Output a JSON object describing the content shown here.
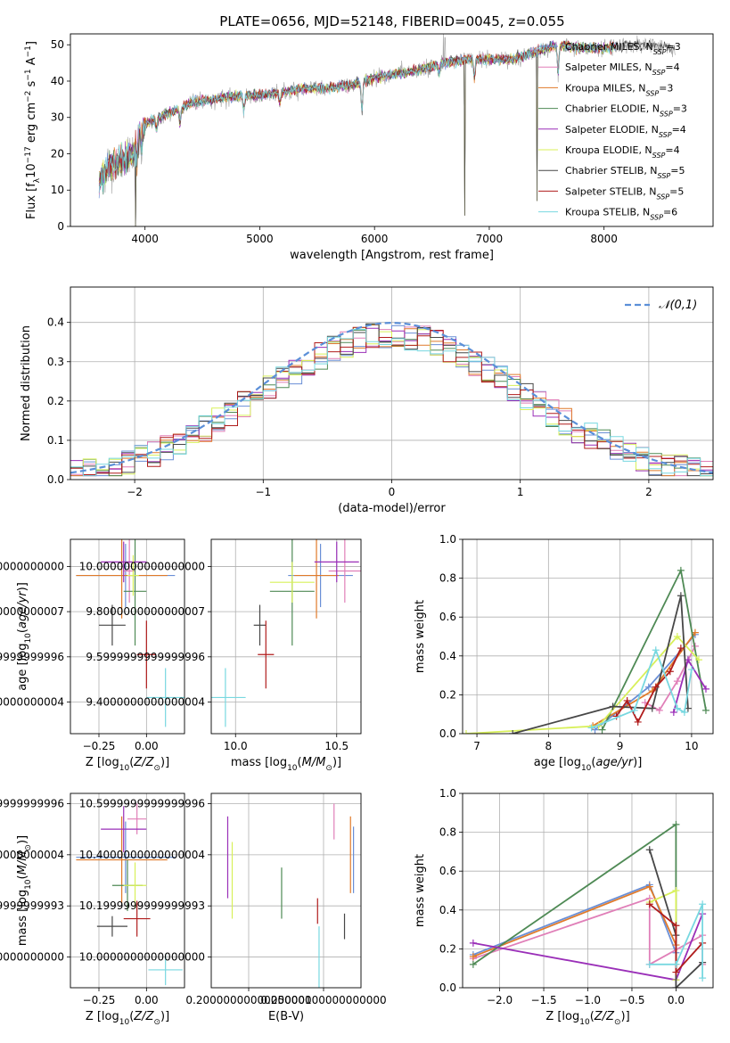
{
  "figure": {
    "title": "PLATE=0656, MJD=52148, FIBERID=0045, z=0.055"
  },
  "models": [
    {
      "name": "Chabrier MILES",
      "nssp": "3",
      "color": "#6a8fd6"
    },
    {
      "name": "Salpeter MILES",
      "nssp": "4",
      "color": "#e07fb8"
    },
    {
      "name": "Kroupa MILES",
      "nssp": "3",
      "color": "#e07a2a"
    },
    {
      "name": "Chabrier ELODIE",
      "nssp": "3",
      "color": "#4f8a55"
    },
    {
      "name": "Salpeter ELODIE",
      "nssp": "4",
      "color": "#9a2fb8"
    },
    {
      "name": "Kroupa ELODIE",
      "nssp": "4",
      "color": "#d8f05a"
    },
    {
      "name": "Chabrier STELIB",
      "nssp": "5",
      "color": "#474747"
    },
    {
      "name": "Salpeter STELIB",
      "nssp": "5",
      "color": "#b01c1c"
    },
    {
      "name": "Kroupa STELIB",
      "nssp": "6",
      "color": "#78d8e0"
    }
  ],
  "chart_data": [
    {
      "id": "spectrum",
      "type": "line",
      "xlabel": "wavelength [Angstrom, rest frame]",
      "ylabel": "Flux [f",
      "xlim": [
        3350,
        8950
      ],
      "ylim": [
        0,
        53
      ],
      "xticks": [
        4000,
        5000,
        6000,
        7000,
        8000
      ],
      "yticks": [
        0,
        10,
        20,
        30,
        40,
        50
      ],
      "grid": false,
      "legend": "top-right",
      "data_color": "#aaaaaa",
      "continuum": [
        [
          3600,
          12
        ],
        [
          3700,
          17
        ],
        [
          3800,
          18
        ],
        [
          3900,
          20
        ],
        [
          3960,
          27
        ],
        [
          4050,
          29
        ],
        [
          4200,
          31
        ],
        [
          4400,
          34
        ],
        [
          4600,
          35
        ],
        [
          4800,
          36
        ],
        [
          5000,
          36
        ],
        [
          5200,
          37
        ],
        [
          5400,
          38
        ],
        [
          5600,
          38
        ],
        [
          5800,
          39
        ],
        [
          6000,
          41
        ],
        [
          6200,
          42
        ],
        [
          6400,
          43
        ],
        [
          6600,
          45
        ],
        [
          6800,
          46
        ],
        [
          7000,
          46
        ],
        [
          7200,
          46
        ],
        [
          7400,
          48
        ],
        [
          7600,
          50
        ],
        [
          7800,
          49
        ],
        [
          8000,
          49
        ],
        [
          8200,
          50
        ],
        [
          8400,
          50
        ],
        [
          8600,
          49
        ]
      ],
      "model_range": [
        3600,
        8100
      ],
      "dips": [
        [
          3930,
          5
        ],
        [
          3970,
          4
        ],
        [
          4100,
          3
        ],
        [
          4305,
          4
        ],
        [
          4861,
          4
        ],
        [
          5175,
          3
        ],
        [
          5890,
          8
        ],
        [
          6563,
          3
        ],
        [
          6870,
          5
        ],
        [
          7600,
          8
        ]
      ],
      "drops": [
        [
          3920,
          0
        ],
        [
          6785,
          3
        ],
        [
          7415,
          7
        ]
      ],
      "spikes": [
        [
          6600,
          53
        ],
        [
          6613,
          52
        ]
      ]
    },
    {
      "id": "residuals",
      "type": "histogram",
      "xlabel": "(data-model)/error",
      "ylabel": "Normed distribution",
      "xlim": [
        -2.5,
        2.5
      ],
      "ylim": [
        0,
        0.49
      ],
      "xticks": [
        -2,
        -1,
        0,
        1,
        2
      ],
      "yticks": [
        0,
        0.1,
        0.2,
        0.3,
        0.4
      ],
      "grid": true,
      "legend": "top-right",
      "reference": {
        "name": "𝒩(0,1)",
        "color": "#5b8fd8",
        "mean": 0,
        "sigma": 1
      },
      "bin_width": 0.1
    },
    {
      "id": "age-vs-Z",
      "type": "errorbar",
      "xlabel": "Z [log",
      "ylabel": "age  [log",
      "xlim": [
        -0.4,
        0.2
      ],
      "ylim": [
        9.26,
        10.12
      ],
      "xticks": [
        -0.25,
        0.0
      ],
      "yticks": [
        9.4,
        9.6,
        9.8,
        10.0
      ],
      "grid": true,
      "points": [
        {
          "x": -0.11,
          "y": 9.96,
          "dx": 0.26,
          "dy": 0.14
        },
        {
          "x": -0.09,
          "y": 9.98,
          "dx": 0.03,
          "dy": 0.14
        },
        {
          "x": -0.13,
          "y": 9.96,
          "dx": 0.24,
          "dy": 0.19
        },
        {
          "x": -0.06,
          "y": 9.89,
          "dx": 0.06,
          "dy": 0.24
        },
        {
          "x": -0.12,
          "y": 10.02,
          "dx": 0.12,
          "dy": 0.09
        },
        {
          "x": -0.07,
          "y": 9.96,
          "dx": 0.03,
          "dy": 0.09
        },
        {
          "x": -0.18,
          "y": 9.74,
          "dx": 0.07,
          "dy": 0.09
        },
        {
          "x": 0.0,
          "y": 9.61,
          "dx": 0.05,
          "dy": 0.15
        },
        {
          "x": 0.1,
          "y": 9.42,
          "dx": 0.1,
          "dy": 0.13
        }
      ]
    },
    {
      "id": "age-vs-mass",
      "type": "errorbar",
      "xlabel": "mass [log",
      "ylabel": "",
      "xlim": [
        9.88,
        10.62
      ],
      "ylim": [
        9.26,
        10.12
      ],
      "xticks": [
        10.0,
        10.5
      ],
      "yticks": [
        9.4,
        9.6,
        9.8,
        10.0
      ],
      "grid": true,
      "points": [
        {
          "x": 10.42,
          "y": 9.96,
          "dx": 0.16,
          "dy": 0.14
        },
        {
          "x": 10.54,
          "y": 9.98,
          "dx": 0.08,
          "dy": 0.14
        },
        {
          "x": 10.4,
          "y": 9.96,
          "dx": 0.11,
          "dy": 0.19
        },
        {
          "x": 10.28,
          "y": 9.89,
          "dx": 0.11,
          "dy": 0.24
        },
        {
          "x": 10.5,
          "y": 10.02,
          "dx": 0.11,
          "dy": 0.09
        },
        {
          "x": 10.28,
          "y": 9.93,
          "dx": 0.11,
          "dy": 0.09
        },
        {
          "x": 10.12,
          "y": 9.74,
          "dx": 0.03,
          "dy": 0.09
        },
        {
          "x": 10.15,
          "y": 9.61,
          "dx": 0.04,
          "dy": 0.15
        },
        {
          "x": 9.95,
          "y": 9.42,
          "dx": 0.1,
          "dy": 0.13
        }
      ]
    },
    {
      "id": "weight-vs-age",
      "type": "line",
      "xlabel": "age  [log",
      "ylabel": "mass weight",
      "xlim": [
        6.8,
        10.3
      ],
      "ylim": [
        0,
        1.0
      ],
      "xticks": [
        7,
        8,
        9,
        10
      ],
      "yticks": [
        0,
        0.2,
        0.4,
        0.6,
        0.8,
        1.0
      ],
      "grid": true,
      "series": [
        {
          "x": [
            8.65,
            9.4,
            10.05
          ],
          "y": [
            0.02,
            0.24,
            0.51
          ]
        },
        {
          "x": [
            9.35,
            9.55,
            9.8,
            10.05
          ],
          "y": [
            0.16,
            0.12,
            0.27,
            0.45
          ]
        },
        {
          "x": [
            8.62,
            9.45,
            10.05
          ],
          "y": [
            0.04,
            0.22,
            0.52
          ]
        },
        {
          "x": [
            8.75,
            9.85,
            10.2
          ],
          "y": [
            0.02,
            0.84,
            0.12
          ]
        },
        {
          "x": [
            9.75,
            9.95,
            10.2
          ],
          "y": [
            0.11,
            0.38,
            0.23
          ]
        },
        {
          "x": [
            6.85,
            8.7,
            9.8,
            10.1
          ],
          "y": [
            0.0,
            0.04,
            0.5,
            0.38
          ]
        },
        {
          "x": [
            7.5,
            8.9,
            9.45,
            9.85,
            9.95
          ],
          "y": [
            0.0,
            0.14,
            0.13,
            0.71,
            0.13
          ]
        },
        {
          "x": [
            8.95,
            9.1,
            9.25,
            9.5,
            9.7,
            9.85
          ],
          "y": [
            0.09,
            0.17,
            0.06,
            0.24,
            0.32,
            0.44
          ]
        },
        {
          "x": [
            8.6,
            9.2,
            9.5,
            9.8,
            9.9,
            10.0
          ],
          "y": [
            0.03,
            0.12,
            0.43,
            0.13,
            0.11,
            0.33
          ]
        }
      ]
    },
    {
      "id": "mass-vs-Z",
      "type": "errorbar",
      "xlabel": "Z [log",
      "ylabel": "mass [log",
      "xlim": [
        -0.4,
        0.2
      ],
      "ylim": [
        9.88,
        10.64
      ],
      "xticks": [
        -0.25,
        0.0
      ],
      "yticks": [
        10.0,
        10.2,
        10.4,
        10.6
      ],
      "grid": true,
      "points": [
        {
          "x": -0.11,
          "y": 10.39,
          "dx": 0.26,
          "dy": 0.14
        },
        {
          "x": -0.05,
          "y": 10.54,
          "dx": 0.05,
          "dy": 0.06
        },
        {
          "x": -0.13,
          "y": 10.38,
          "dx": 0.24,
          "dy": 0.17
        },
        {
          "x": -0.1,
          "y": 10.28,
          "dx": 0.08,
          "dy": 0.1
        },
        {
          "x": -0.12,
          "y": 10.5,
          "dx": 0.12,
          "dy": 0.09
        },
        {
          "x": -0.06,
          "y": 10.28,
          "dx": 0.06,
          "dy": 0.09
        },
        {
          "x": -0.18,
          "y": 10.12,
          "dx": 0.08,
          "dy": 0.04
        },
        {
          "x": -0.05,
          "y": 10.15,
          "dx": 0.07,
          "dy": 0.07
        },
        {
          "x": 0.1,
          "y": 9.95,
          "dx": 0.09,
          "dy": 0.06
        }
      ]
    },
    {
      "id": "mass-vs-EBV",
      "type": "errorbar",
      "xlabel": "E(B-V)",
      "ylabel": "",
      "xlim": [
        0.175,
        0.275
      ],
      "ylim": [
        9.88,
        10.64
      ],
      "xticks": [
        0.2,
        0.25
      ],
      "yticks": [
        10.0,
        10.2,
        10.4,
        10.6
      ],
      "grid": true,
      "points": [
        {
          "x": 0.27,
          "y": 10.38,
          "dx": 0,
          "dy": 0.13
        },
        {
          "x": 0.257,
          "y": 10.53,
          "dx": 0,
          "dy": 0.07
        },
        {
          "x": 0.268,
          "y": 10.4,
          "dx": 0,
          "dy": 0.15
        },
        {
          "x": 0.222,
          "y": 10.25,
          "dx": 0,
          "dy": 0.1
        },
        {
          "x": 0.186,
          "y": 10.39,
          "dx": 0,
          "dy": 0.16
        },
        {
          "x": 0.189,
          "y": 10.3,
          "dx": 0,
          "dy": 0.15
        },
        {
          "x": 0.264,
          "y": 10.12,
          "dx": 0,
          "dy": 0.05
        },
        {
          "x": 0.246,
          "y": 10.18,
          "dx": 0,
          "dy": 0.05
        },
        {
          "x": 0.247,
          "y": 9.99,
          "dx": 0,
          "dy": 0.13
        }
      ]
    },
    {
      "id": "weight-vs-Z",
      "type": "line",
      "xlabel": "Z [log",
      "ylabel": "mass weight",
      "xlim": [
        -2.42,
        0.42
      ],
      "ylim": [
        0,
        1.0
      ],
      "xticks": [
        -2.0,
        -1.5,
        -1.0,
        -0.5,
        0.0
      ],
      "yticks": [
        0,
        0.2,
        0.4,
        0.6,
        0.8,
        1.0
      ],
      "grid": true,
      "series": [
        {
          "x": [
            -2.3,
            -0.3,
            0.0
          ],
          "y": [
            0.17,
            0.53,
            0.18
          ]
        },
        {
          "x": [
            -2.3,
            -0.3,
            -0.3,
            0.3,
            0.3
          ],
          "y": [
            0.15,
            0.46,
            0.12,
            0.27,
            0.12
          ]
        },
        {
          "x": [
            -2.3,
            -0.3,
            0.0
          ],
          "y": [
            0.16,
            0.52,
            0.22
          ]
        },
        {
          "x": [
            -2.3,
            0.0,
            0.0
          ],
          "y": [
            0.12,
            0.84,
            0.12
          ]
        },
        {
          "x": [
            -2.3,
            0.0,
            0.3
          ],
          "y": [
            0.23,
            0.04,
            0.38
          ]
        },
        {
          "x": [
            -0.3,
            0.0,
            0.0
          ],
          "y": [
            0.44,
            0.5,
            0.04
          ]
        },
        {
          "x": [
            -0.3,
            0.0,
            0.0,
            0.3
          ],
          "y": [
            0.71,
            0.27,
            0.0,
            0.13
          ]
        },
        {
          "x": [
            -0.3,
            0.0,
            0.0,
            0.3
          ],
          "y": [
            0.43,
            0.32,
            0.08,
            0.23
          ]
        },
        {
          "x": [
            -0.3,
            0.0,
            0.3,
            0.3
          ],
          "y": [
            0.12,
            0.12,
            0.43,
            0.05
          ]
        }
      ]
    }
  ]
}
